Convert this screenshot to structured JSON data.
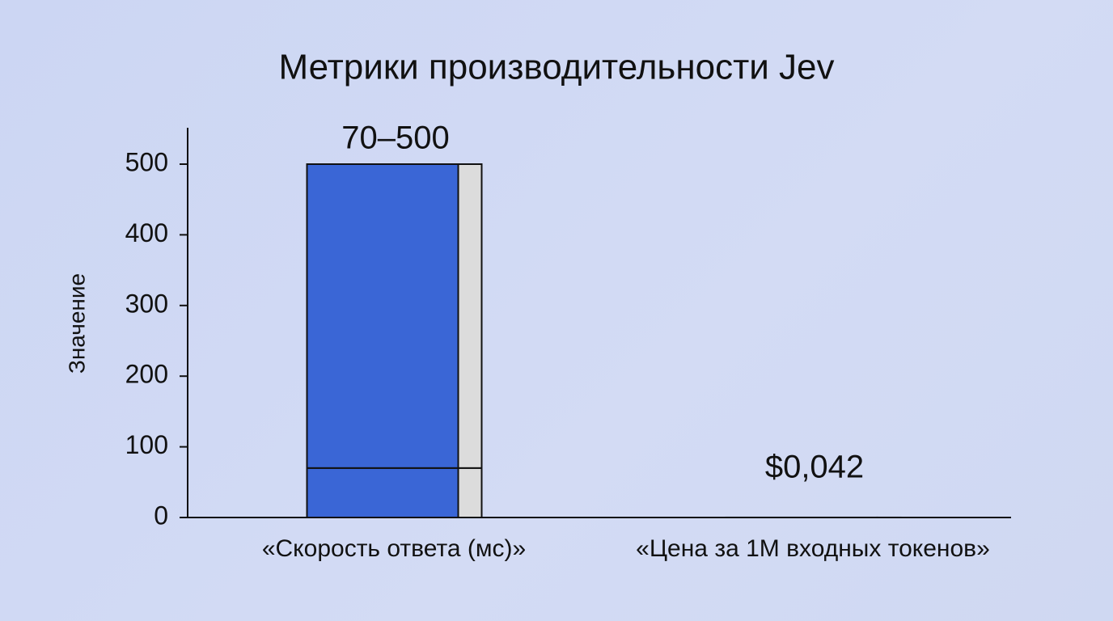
{
  "chart_data": {
    "type": "bar",
    "title": "Метрики производительности Jev",
    "y_label": "Значение",
    "categories": [
      "«Скорость ответа (мс)»",
      "«Цена за 1M входных токенов»"
    ],
    "low": [
      70,
      null
    ],
    "values": [
      500,
      0.042
    ],
    "value_labels": [
      "70–500",
      "$0,042"
    ],
    "color": "#3a66d6",
    "side_color": "#dcdcdc",
    "ylim": [
      0,
      550
    ],
    "yticks": [
      0,
      100,
      200,
      300,
      400,
      500
    ]
  }
}
